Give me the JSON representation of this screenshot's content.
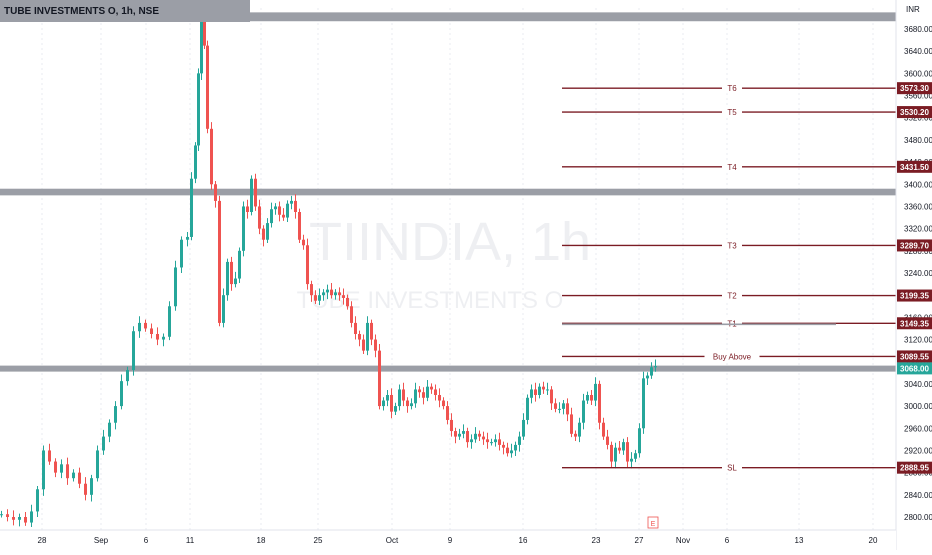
{
  "header": {
    "title": "TUBE INVESTMENTS O, 1h, NSE"
  },
  "currency": "INR",
  "watermark": {
    "symbol": "TIINDIA, 1h",
    "name": "TUBE INVESTMENTS O"
  },
  "events_marker": "E",
  "colors": {
    "up": "#26a69a",
    "down": "#ef5350",
    "level": "#7b1c24",
    "zone": "#9b9ea6",
    "current": "#26a69a"
  },
  "chart_data": {
    "type": "candlestick",
    "title": "TUBE INVESTMENTS O, 1h, NSE",
    "xlabel": "",
    "ylabel": "",
    "ylim": [
      2780,
      3710
    ],
    "y_ticks": [
      "3680.00",
      "3640.00",
      "3600.00",
      "3560.00",
      "3520.00",
      "3480.00",
      "3440.00",
      "3400.00",
      "3360.00",
      "3320.00",
      "3280.00",
      "3240.00",
      "3200.00",
      "3160.00",
      "3120.00",
      "3080.00",
      "3040.00",
      "3000.00",
      "2960.00",
      "2920.00",
      "2880.00",
      "2840.00",
      "2800.00"
    ],
    "x_ticks": [
      "28",
      "Sep",
      "6",
      "11",
      "18",
      "25",
      "Oct",
      "9",
      "16",
      "23",
      "27",
      "Nov",
      "6",
      "13",
      "20"
    ],
    "series": [
      {
        "name": "price",
        "close_path": [
          [
            0,
            2805
          ],
          [
            6,
            2800
          ],
          [
            12,
            2795
          ],
          [
            18,
            2800
          ],
          [
            24,
            2790
          ],
          [
            30,
            2810
          ],
          [
            36,
            2850
          ],
          [
            42,
            2920
          ],
          [
            48,
            2900
          ],
          [
            54,
            2880
          ],
          [
            60,
            2895
          ],
          [
            66,
            2870
          ],
          [
            72,
            2880
          ],
          [
            78,
            2860
          ],
          [
            84,
            2840
          ],
          [
            90,
            2870
          ],
          [
            96,
            2920
          ],
          [
            102,
            2945
          ],
          [
            108,
            2970
          ],
          [
            114,
            3000
          ],
          [
            120,
            3045
          ],
          [
            126,
            3065
          ],
          [
            132,
            3135
          ],
          [
            138,
            3150
          ],
          [
            144,
            3140
          ],
          [
            150,
            3130
          ],
          [
            156,
            3120
          ],
          [
            162,
            3125
          ],
          [
            168,
            3180
          ],
          [
            174,
            3250
          ],
          [
            180,
            3300
          ],
          [
            186,
            3305
          ],
          [
            190,
            3410
          ],
          [
            194,
            3470
          ],
          [
            197,
            3600
          ],
          [
            200,
            3700
          ],
          [
            203,
            3650
          ],
          [
            206,
            3500
          ],
          [
            210,
            3400
          ],
          [
            214,
            3370
          ],
          [
            218,
            3150
          ],
          [
            222,
            3200
          ],
          [
            226,
            3260
          ],
          [
            230,
            3220
          ],
          [
            234,
            3230
          ],
          [
            238,
            3280
          ],
          [
            242,
            3360
          ],
          [
            246,
            3350
          ],
          [
            250,
            3410
          ],
          [
            254,
            3360
          ],
          [
            258,
            3320
          ],
          [
            262,
            3300
          ],
          [
            266,
            3330
          ],
          [
            270,
            3355
          ],
          [
            274,
            3360
          ],
          [
            278,
            3345
          ],
          [
            282,
            3340
          ],
          [
            286,
            3365
          ],
          [
            290,
            3370
          ],
          [
            294,
            3350
          ],
          [
            298,
            3300
          ],
          [
            302,
            3290
          ],
          [
            306,
            3220
          ],
          [
            310,
            3200
          ],
          [
            314,
            3190
          ],
          [
            318,
            3200
          ],
          [
            322,
            3205
          ],
          [
            326,
            3210
          ],
          [
            330,
            3200
          ],
          [
            334,
            3205
          ],
          [
            338,
            3200
          ],
          [
            342,
            3195
          ],
          [
            346,
            3180
          ],
          [
            350,
            3150
          ],
          [
            354,
            3130
          ],
          [
            358,
            3120
          ],
          [
            362,
            3100
          ],
          [
            366,
            3150
          ],
          [
            370,
            3120
          ],
          [
            374,
            3100
          ],
          [
            378,
            3000
          ],
          [
            382,
            3010
          ],
          [
            386,
            3020
          ],
          [
            390,
            2990
          ],
          [
            394,
            3000
          ],
          [
            398,
            3030
          ],
          [
            402,
            3010
          ],
          [
            406,
            3000
          ],
          [
            410,
            3005
          ],
          [
            414,
            3030
          ],
          [
            418,
            3025
          ],
          [
            422,
            3015
          ],
          [
            426,
            3035
          ],
          [
            430,
            3030
          ],
          [
            434,
            3020
          ],
          [
            438,
            3010
          ],
          [
            442,
            3000
          ],
          [
            446,
            2975
          ],
          [
            450,
            2955
          ],
          [
            454,
            2945
          ],
          [
            458,
            2950
          ],
          [
            462,
            2955
          ],
          [
            466,
            2935
          ],
          [
            470,
            2940
          ],
          [
            474,
            2950
          ],
          [
            478,
            2945
          ],
          [
            482,
            2940
          ],
          [
            486,
            2935
          ],
          [
            490,
            2935
          ],
          [
            494,
            2940
          ],
          [
            498,
            2930
          ],
          [
            502,
            2925
          ],
          [
            506,
            2915
          ],
          [
            510,
            2920
          ],
          [
            514,
            2930
          ],
          [
            518,
            2945
          ],
          [
            522,
            2975
          ],
          [
            526,
            3015
          ],
          [
            530,
            3030
          ],
          [
            534,
            3020
          ],
          [
            538,
            3035
          ],
          [
            542,
            3030
          ],
          [
            546,
            3030
          ],
          [
            550,
            3005
          ],
          [
            554,
            2995
          ],
          [
            558,
            2995
          ],
          [
            562,
            3005
          ],
          [
            566,
            2985
          ],
          [
            570,
            2950
          ],
          [
            574,
            2945
          ],
          [
            578,
            2970
          ],
          [
            582,
            3010
          ],
          [
            586,
            3020
          ],
          [
            590,
            3010
          ],
          [
            594,
            3040
          ],
          [
            598,
            2970
          ],
          [
            602,
            2945
          ],
          [
            606,
            2930
          ],
          [
            610,
            2900
          ],
          [
            614,
            2925
          ],
          [
            618,
            2920
          ],
          [
            622,
            2935
          ],
          [
            626,
            2900
          ],
          [
            630,
            2905
          ],
          [
            634,
            2915
          ],
          [
            638,
            2960
          ],
          [
            642,
            3050
          ],
          [
            646,
            3055
          ],
          [
            650,
            3070
          ],
          [
            654,
            3072
          ]
        ]
      }
    ],
    "zones": [
      {
        "y_top": 3710,
        "y_bottom": 3694
      },
      {
        "y_top": 3392,
        "y_bottom": 3380
      },
      {
        "y_top": 3073,
        "y_bottom": 3063
      }
    ],
    "levels": [
      {
        "label": "T6",
        "value": "3573.30",
        "y": 3573.3
      },
      {
        "label": "T5",
        "value": "3530.20",
        "y": 3530.2
      },
      {
        "label": "T4",
        "value": "3431.50",
        "y": 3431.5
      },
      {
        "label": "T3",
        "value": "3289.70",
        "y": 3289.7
      },
      {
        "label": "T2",
        "value": "3199.35",
        "y": 3199.35
      },
      {
        "label": "T1",
        "value": "3149.35",
        "y": 3149.35
      },
      {
        "label": "Buy Above",
        "value": "3089.55",
        "y": 3089.55
      },
      {
        "label": "SL",
        "value": "2888.95",
        "y": 2888.95
      }
    ],
    "current_price": {
      "value": "3068.00",
      "y": 3068
    }
  }
}
